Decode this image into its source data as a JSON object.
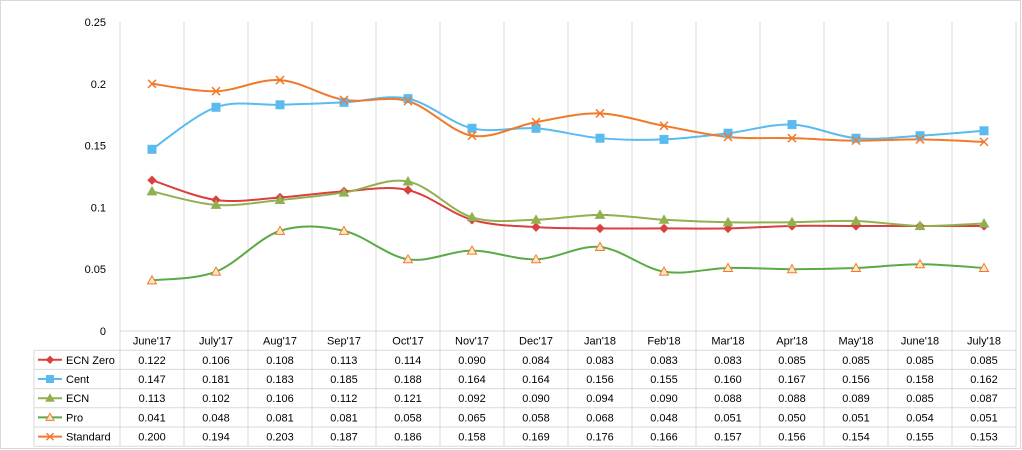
{
  "chart_data": {
    "type": "line",
    "categories": [
      "June'17",
      "July'17",
      "Aug'17",
      "Sep'17",
      "Oct'17",
      "Nov'17",
      "Dec'17",
      "Jan'18",
      "Feb'18",
      "Mar'18",
      "Apr'18",
      "May'18",
      "June'18",
      "July'18"
    ],
    "ylim": [
      0,
      0.25
    ],
    "y_ticks": [
      "0",
      "0.05",
      "0.1",
      "0.15",
      "0.2",
      "0.25"
    ],
    "grid": "vertical",
    "legend": "data-table",
    "smooth": true,
    "series": [
      {
        "name": "ECN Zero",
        "color": "#d9403f",
        "marker": "diamond",
        "values": [
          0.122,
          0.106,
          0.108,
          0.113,
          0.114,
          0.09,
          0.084,
          0.083,
          0.083,
          0.083,
          0.085,
          0.085,
          0.085,
          0.085
        ],
        "labels": [
          "0.122",
          "0.106",
          "0.108",
          "0.113",
          "0.114",
          "0.090",
          "0.084",
          "0.083",
          "0.083",
          "0.083",
          "0.085",
          "0.085",
          "0.085",
          "0.085"
        ]
      },
      {
        "name": "Cent",
        "color": "#5bbbef",
        "marker": "square",
        "values": [
          0.147,
          0.181,
          0.183,
          0.185,
          0.188,
          0.164,
          0.164,
          0.156,
          0.155,
          0.16,
          0.167,
          0.156,
          0.158,
          0.162
        ],
        "labels": [
          "0.147",
          "0.181",
          "0.183",
          "0.185",
          "0.188",
          "0.164",
          "0.164",
          "0.156",
          "0.155",
          "0.160",
          "0.167",
          "0.156",
          "0.158",
          "0.162"
        ]
      },
      {
        "name": "ECN",
        "color": "#91b04f",
        "marker": "triangle",
        "values": [
          0.113,
          0.102,
          0.106,
          0.112,
          0.121,
          0.092,
          0.09,
          0.094,
          0.09,
          0.088,
          0.088,
          0.089,
          0.085,
          0.087
        ],
        "labels": [
          "0.113",
          "0.102",
          "0.106",
          "0.112",
          "0.121",
          "0.092",
          "0.090",
          "0.094",
          "0.090",
          "0.088",
          "0.088",
          "0.089",
          "0.085",
          "0.087"
        ]
      },
      {
        "name": "Pro",
        "color": "#5aaa46",
        "marker": "triangle-open",
        "values": [
          0.041,
          0.048,
          0.081,
          0.081,
          0.058,
          0.065,
          0.058,
          0.068,
          0.048,
          0.051,
          0.05,
          0.051,
          0.054,
          0.051
        ],
        "labels": [
          "0.041",
          "0.048",
          "0.081",
          "0.081",
          "0.058",
          "0.065",
          "0.058",
          "0.068",
          "0.048",
          "0.051",
          "0.050",
          "0.051",
          "0.054",
          "0.051"
        ]
      },
      {
        "name": "Standard",
        "color": "#f07a2b",
        "marker": "x",
        "values": [
          0.2,
          0.194,
          0.203,
          0.187,
          0.186,
          0.158,
          0.169,
          0.176,
          0.166,
          0.157,
          0.156,
          0.154,
          0.155,
          0.153
        ],
        "labels": [
          "0.200",
          "0.194",
          "0.203",
          "0.187",
          "0.186",
          "0.158",
          "0.169",
          "0.176",
          "0.166",
          "0.157",
          "0.156",
          "0.154",
          "0.155",
          "0.153"
        ]
      }
    ]
  }
}
